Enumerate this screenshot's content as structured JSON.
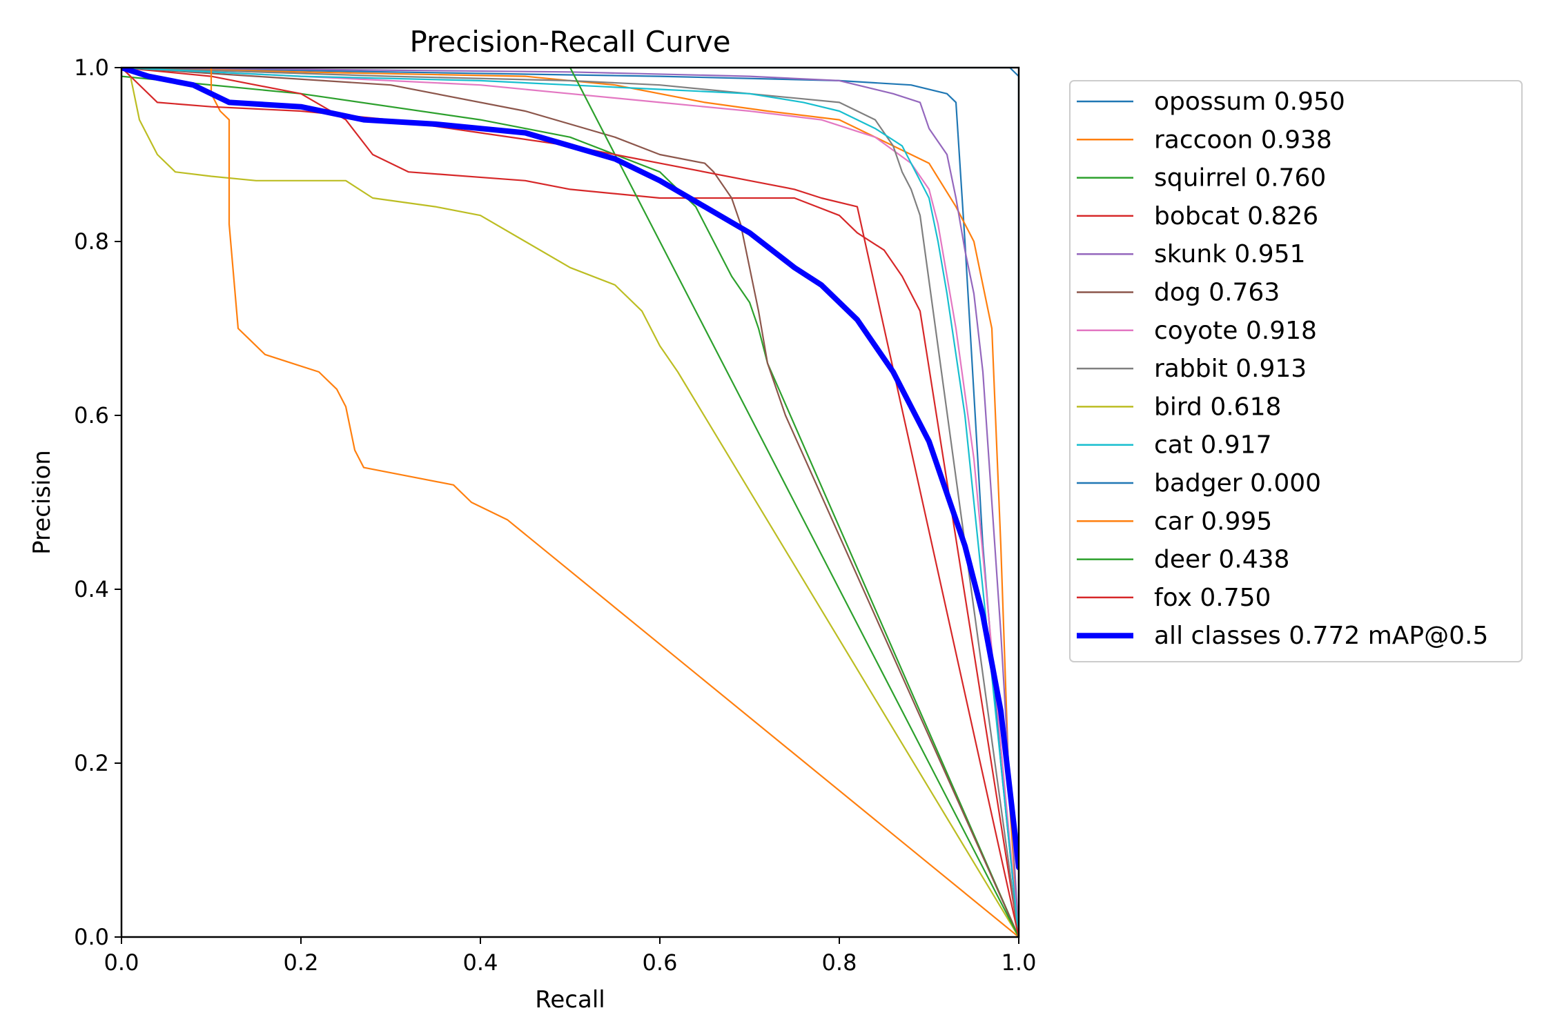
{
  "chart_data": {
    "type": "line",
    "title": "Precision-Recall Curve",
    "xlabel": "Recall",
    "ylabel": "Precision",
    "xlim": [
      0,
      1
    ],
    "ylim": [
      0,
      1
    ],
    "xticks": [
      "0.0",
      "0.2",
      "0.4",
      "0.6",
      "0.8",
      "1.0"
    ],
    "yticks": [
      "0.0",
      "0.2",
      "0.4",
      "0.6",
      "0.8",
      "1.0"
    ],
    "xtick_values": [
      0,
      0.2,
      0.4,
      0.6,
      0.8,
      1.0
    ],
    "ytick_values": [
      0,
      0.2,
      0.4,
      0.6,
      0.8,
      1.0
    ],
    "legend_position": "outside-right-top",
    "grid": false,
    "series": [
      {
        "name": "opossum 0.950",
        "color": "#1f77b4",
        "emphasis": false,
        "points": [
          [
            0,
            1.0
          ],
          [
            0.3,
            0.995
          ],
          [
            0.6,
            0.99
          ],
          [
            0.8,
            0.985
          ],
          [
            0.88,
            0.98
          ],
          [
            0.92,
            0.97
          ],
          [
            0.93,
            0.96
          ],
          [
            0.94,
            0.8
          ],
          [
            0.96,
            0.45
          ],
          [
            0.98,
            0.2
          ],
          [
            1.0,
            0.0
          ]
        ]
      },
      {
        "name": "raccoon 0.938",
        "color": "#ff7f0e",
        "emphasis": false,
        "points": [
          [
            0,
            1.0
          ],
          [
            0.2,
            0.995
          ],
          [
            0.45,
            0.99
          ],
          [
            0.55,
            0.98
          ],
          [
            0.65,
            0.96
          ],
          [
            0.72,
            0.95
          ],
          [
            0.8,
            0.94
          ],
          [
            0.86,
            0.91
          ],
          [
            0.9,
            0.89
          ],
          [
            0.93,
            0.84
          ],
          [
            0.95,
            0.8
          ],
          [
            0.96,
            0.75
          ],
          [
            0.97,
            0.7
          ],
          [
            0.98,
            0.45
          ],
          [
            0.99,
            0.15
          ],
          [
            1.0,
            0.0
          ]
        ]
      },
      {
        "name": "squirrel 0.760",
        "color": "#2ca02c",
        "emphasis": false,
        "points": [
          [
            0,
            0.99
          ],
          [
            0.2,
            0.97
          ],
          [
            0.4,
            0.94
          ],
          [
            0.45,
            0.93
          ],
          [
            0.5,
            0.92
          ],
          [
            0.55,
            0.9
          ],
          [
            0.6,
            0.88
          ],
          [
            0.62,
            0.86
          ],
          [
            0.64,
            0.84
          ],
          [
            0.66,
            0.8
          ],
          [
            0.68,
            0.76
          ],
          [
            0.7,
            0.73
          ],
          [
            0.71,
            0.7
          ],
          [
            0.72,
            0.66
          ],
          [
            1.0,
            0.0
          ]
        ]
      },
      {
        "name": "bobcat 0.826",
        "color": "#d62728",
        "emphasis": false,
        "points": [
          [
            0,
            1.0
          ],
          [
            0.1,
            0.99
          ],
          [
            0.2,
            0.97
          ],
          [
            0.25,
            0.94
          ],
          [
            0.28,
            0.9
          ],
          [
            0.32,
            0.88
          ],
          [
            0.45,
            0.87
          ],
          [
            0.5,
            0.86
          ],
          [
            0.6,
            0.85
          ],
          [
            0.75,
            0.85
          ],
          [
            0.8,
            0.83
          ],
          [
            0.82,
            0.81
          ],
          [
            0.85,
            0.79
          ],
          [
            0.87,
            0.76
          ],
          [
            0.89,
            0.72
          ],
          [
            1.0,
            0.0
          ]
        ]
      },
      {
        "name": "skunk 0.951",
        "color": "#9467bd",
        "emphasis": false,
        "points": [
          [
            0,
            1.0
          ],
          [
            0.5,
            0.995
          ],
          [
            0.7,
            0.99
          ],
          [
            0.8,
            0.985
          ],
          [
            0.86,
            0.97
          ],
          [
            0.89,
            0.96
          ],
          [
            0.9,
            0.93
          ],
          [
            0.92,
            0.9
          ],
          [
            0.93,
            0.85
          ],
          [
            0.94,
            0.79
          ],
          [
            0.95,
            0.74
          ],
          [
            0.96,
            0.65
          ],
          [
            0.98,
            0.35
          ],
          [
            1.0,
            0.0
          ]
        ]
      },
      {
        "name": "dog 0.763",
        "color": "#8c564b",
        "emphasis": false,
        "points": [
          [
            0,
            1.0
          ],
          [
            0.15,
            0.99
          ],
          [
            0.3,
            0.98
          ],
          [
            0.45,
            0.95
          ],
          [
            0.55,
            0.92
          ],
          [
            0.6,
            0.9
          ],
          [
            0.65,
            0.89
          ],
          [
            0.66,
            0.88
          ],
          [
            0.68,
            0.85
          ],
          [
            0.69,
            0.82
          ],
          [
            0.7,
            0.77
          ],
          [
            0.71,
            0.72
          ],
          [
            0.72,
            0.66
          ],
          [
            0.74,
            0.6
          ],
          [
            1.0,
            0.0
          ]
        ]
      },
      {
        "name": "coyote 0.918",
        "color": "#e377c2",
        "emphasis": false,
        "points": [
          [
            0,
            1.0
          ],
          [
            0.2,
            0.99
          ],
          [
            0.4,
            0.98
          ],
          [
            0.5,
            0.97
          ],
          [
            0.6,
            0.96
          ],
          [
            0.7,
            0.95
          ],
          [
            0.78,
            0.94
          ],
          [
            0.84,
            0.92
          ],
          [
            0.88,
            0.89
          ],
          [
            0.9,
            0.86
          ],
          [
            0.91,
            0.82
          ],
          [
            0.92,
            0.76
          ],
          [
            0.93,
            0.7
          ],
          [
            0.95,
            0.55
          ],
          [
            1.0,
            0.0
          ]
        ]
      },
      {
        "name": "rabbit 0.913",
        "color": "#7f7f7f",
        "emphasis": false,
        "points": [
          [
            0,
            1.0
          ],
          [
            0.3,
            0.99
          ],
          [
            0.5,
            0.985
          ],
          [
            0.6,
            0.98
          ],
          [
            0.7,
            0.97
          ],
          [
            0.8,
            0.96
          ],
          [
            0.84,
            0.94
          ],
          [
            0.86,
            0.91
          ],
          [
            0.87,
            0.88
          ],
          [
            0.88,
            0.86
          ],
          [
            0.89,
            0.83
          ],
          [
            1.0,
            0.0
          ]
        ]
      },
      {
        "name": "bird 0.618",
        "color": "#bcbd22",
        "emphasis": false,
        "points": [
          [
            0,
            1.0
          ],
          [
            0.01,
            0.99
          ],
          [
            0.02,
            0.94
          ],
          [
            0.04,
            0.9
          ],
          [
            0.06,
            0.88
          ],
          [
            0.1,
            0.875
          ],
          [
            0.15,
            0.87
          ],
          [
            0.25,
            0.87
          ],
          [
            0.28,
            0.85
          ],
          [
            0.35,
            0.84
          ],
          [
            0.4,
            0.83
          ],
          [
            0.45,
            0.8
          ],
          [
            0.5,
            0.77
          ],
          [
            0.55,
            0.75
          ],
          [
            0.58,
            0.72
          ],
          [
            0.6,
            0.68
          ],
          [
            0.62,
            0.65
          ],
          [
            1.0,
            0.0
          ]
        ]
      },
      {
        "name": "cat 0.917",
        "color": "#17becf",
        "emphasis": false,
        "points": [
          [
            0,
            1.0
          ],
          [
            0.2,
            0.99
          ],
          [
            0.4,
            0.985
          ],
          [
            0.5,
            0.98
          ],
          [
            0.6,
            0.975
          ],
          [
            0.7,
            0.97
          ],
          [
            0.76,
            0.96
          ],
          [
            0.8,
            0.95
          ],
          [
            0.84,
            0.93
          ],
          [
            0.87,
            0.91
          ],
          [
            0.88,
            0.89
          ],
          [
            0.9,
            0.85
          ],
          [
            0.91,
            0.8
          ],
          [
            0.92,
            0.74
          ],
          [
            0.94,
            0.6
          ],
          [
            1.0,
            0.0
          ]
        ]
      },
      {
        "name": "badger 0.000",
        "color": "#1f77b4",
        "emphasis": false,
        "points": [
          [
            0,
            1.0
          ],
          [
            0.99,
            1.0
          ],
          [
            1.0,
            0.99
          ],
          [
            1.0,
            0.0
          ]
        ]
      },
      {
        "name": "car 0.995",
        "color": "#ff7f0e",
        "emphasis": false,
        "points": [
          [
            0,
            1.0
          ],
          [
            0.1,
            1.0
          ],
          [
            0.1,
            0.97
          ],
          [
            0.11,
            0.95
          ],
          [
            0.12,
            0.94
          ],
          [
            0.12,
            0.82
          ],
          [
            0.13,
            0.7
          ],
          [
            0.14,
            0.69
          ],
          [
            0.16,
            0.67
          ],
          [
            0.19,
            0.66
          ],
          [
            0.22,
            0.65
          ],
          [
            0.24,
            0.63
          ],
          [
            0.25,
            0.61
          ],
          [
            0.26,
            0.56
          ],
          [
            0.27,
            0.54
          ],
          [
            0.32,
            0.53
          ],
          [
            0.37,
            0.52
          ],
          [
            0.39,
            0.5
          ],
          [
            0.41,
            0.49
          ],
          [
            0.43,
            0.48
          ],
          [
            1.0,
            0.0
          ]
        ]
      },
      {
        "name": "deer 0.438",
        "color": "#2ca02c",
        "emphasis": false,
        "points": [
          [
            0,
            1.0
          ],
          [
            0.5,
            1.0
          ],
          [
            1.0,
            0.0
          ]
        ]
      },
      {
        "name": "fox 0.750",
        "color": "#d62728",
        "emphasis": false,
        "points": [
          [
            0,
            1.0
          ],
          [
            0.04,
            0.96
          ],
          [
            0.1,
            0.955
          ],
          [
            0.2,
            0.95
          ],
          [
            0.3,
            0.94
          ],
          [
            0.4,
            0.925
          ],
          [
            0.5,
            0.91
          ],
          [
            0.55,
            0.9
          ],
          [
            0.6,
            0.89
          ],
          [
            0.7,
            0.87
          ],
          [
            0.75,
            0.86
          ],
          [
            0.78,
            0.85
          ],
          [
            0.82,
            0.84
          ],
          [
            1.0,
            0.0
          ]
        ]
      },
      {
        "name": "all classes 0.772 mAP@0.5",
        "color": "#0000ff",
        "emphasis": true,
        "points": [
          [
            0,
            1.0
          ],
          [
            0.03,
            0.99
          ],
          [
            0.08,
            0.98
          ],
          [
            0.12,
            0.96
          ],
          [
            0.2,
            0.955
          ],
          [
            0.27,
            0.94
          ],
          [
            0.35,
            0.935
          ],
          [
            0.4,
            0.93
          ],
          [
            0.45,
            0.925
          ],
          [
            0.5,
            0.91
          ],
          [
            0.55,
            0.895
          ],
          [
            0.6,
            0.87
          ],
          [
            0.65,
            0.84
          ],
          [
            0.7,
            0.81
          ],
          [
            0.75,
            0.77
          ],
          [
            0.78,
            0.75
          ],
          [
            0.82,
            0.71
          ],
          [
            0.86,
            0.65
          ],
          [
            0.88,
            0.61
          ],
          [
            0.9,
            0.57
          ],
          [
            0.92,
            0.51
          ],
          [
            0.94,
            0.45
          ],
          [
            0.96,
            0.37
          ],
          [
            0.98,
            0.26
          ],
          [
            0.99,
            0.17
          ],
          [
            1.0,
            0.08
          ]
        ]
      }
    ]
  }
}
